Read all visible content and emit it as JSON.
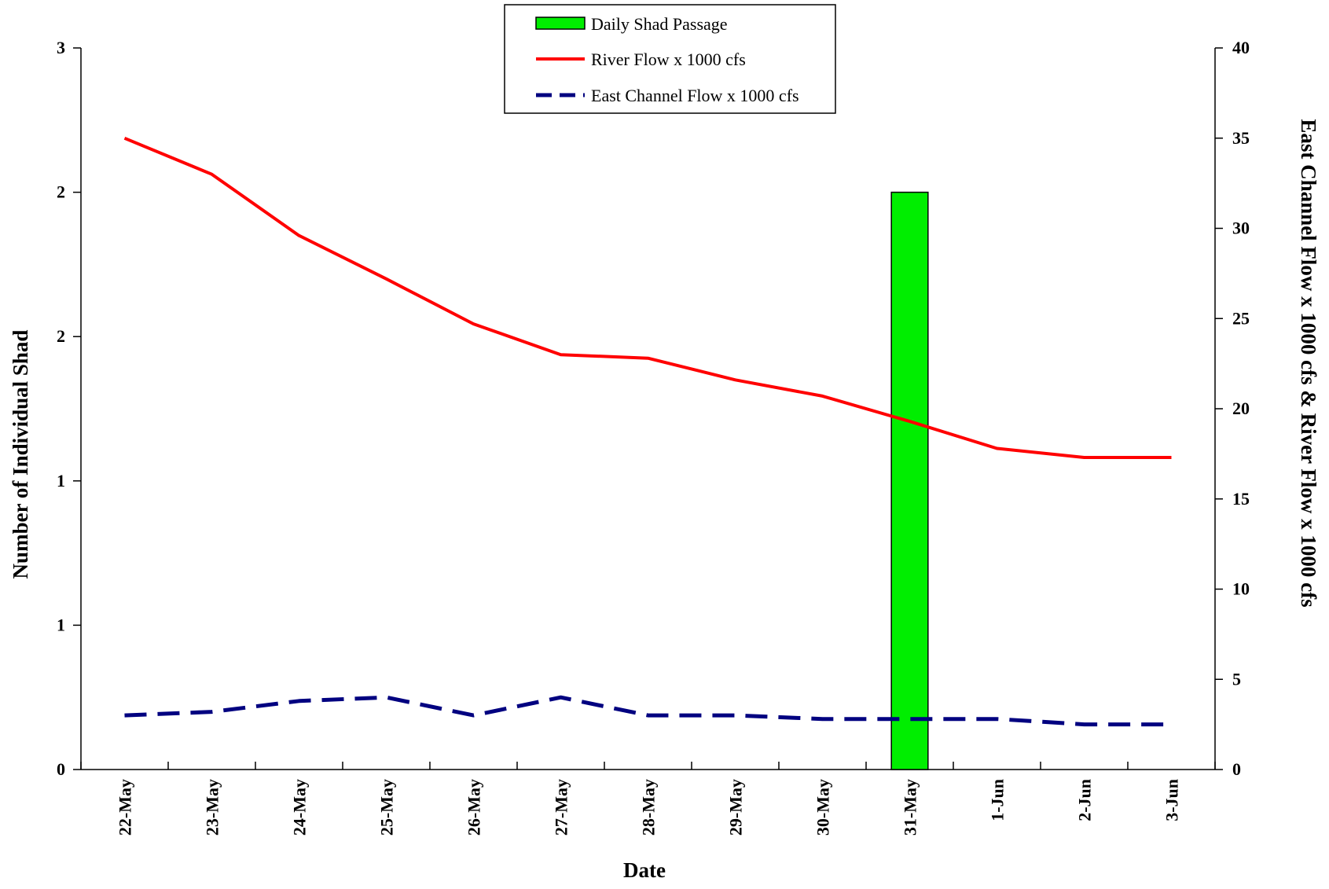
{
  "chart_data": {
    "type": "bar",
    "categories": [
      "22-May",
      "23-May",
      "24-May",
      "25-May",
      "26-May",
      "27-May",
      "28-May",
      "29-May",
      "30-May",
      "31-May",
      "1-Jun",
      "2-Jun",
      "3-Jun"
    ],
    "xlabel": "Date",
    "ylabel_left": "Number of Individual Shad",
    "ylabel_right": "East Channel Flow x 1000 cfs & River Flow x 1000 cfs",
    "y_left_ticks": [
      "0",
      "1",
      "1",
      "2",
      "2",
      "3"
    ],
    "y_left_lim": [
      0,
      2.5
    ],
    "y_right_ticks": [
      "0",
      "5",
      "10",
      "15",
      "20",
      "25",
      "30",
      "35",
      "40"
    ],
    "y_right_lim": [
      0,
      40
    ],
    "series": [
      {
        "name": "Daily Shad Passage",
        "axis": "left",
        "kind": "bar",
        "color": "#00ee00",
        "values": [
          0,
          0,
          0,
          0,
          0,
          0,
          0,
          0,
          0,
          2,
          0,
          0,
          0
        ]
      },
      {
        "name": "River Flow x 1000 cfs",
        "axis": "right",
        "kind": "line",
        "style": "solid",
        "color": "#ff0000",
        "values": [
          35.0,
          33.0,
          29.6,
          27.2,
          24.7,
          23.0,
          22.8,
          21.6,
          20.7,
          19.3,
          17.8,
          17.3,
          17.3
        ]
      },
      {
        "name": "East Channel Flow x 1000 cfs",
        "axis": "right",
        "kind": "line",
        "style": "dashed",
        "color": "#000080",
        "values": [
          3.0,
          3.2,
          3.8,
          4.0,
          3.0,
          4.0,
          3.0,
          3.0,
          2.8,
          2.8,
          2.8,
          2.5,
          2.5
        ]
      }
    ],
    "grid": false,
    "legend_position": "top-center"
  }
}
